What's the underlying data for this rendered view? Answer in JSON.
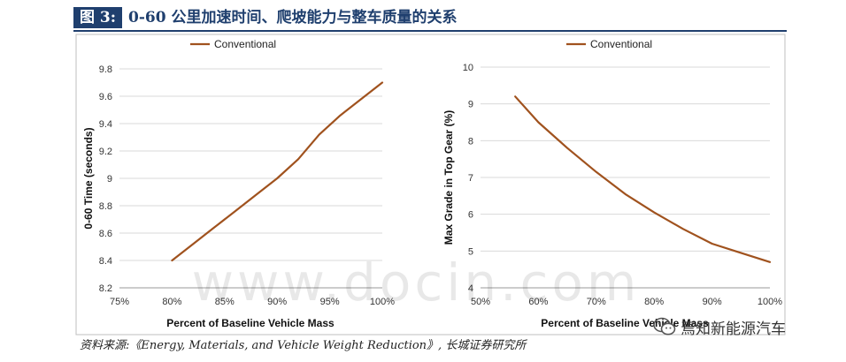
{
  "header": {
    "figure_label": "图 3:",
    "title": "0-60 公里加速时间、爬坡能力与整车质量的关系"
  },
  "chart_data": [
    {
      "type": "line",
      "legend": "Conventional",
      "legend_position": "top-left",
      "xlabel": "Percent of Baseline Vehicle Mass",
      "ylabel": "0-60 Time (seconds)",
      "xlim": [
        75,
        100
      ],
      "ylim": [
        8.2,
        9.8
      ],
      "x_ticks": [
        75,
        80,
        85,
        90,
        95,
        100
      ],
      "x_tick_labels": [
        "75%",
        "80%",
        "85%",
        "90%",
        "95%",
        "100%"
      ],
      "y_ticks": [
        8.2,
        8.4,
        8.6,
        8.8,
        9,
        9.2,
        9.4,
        9.6,
        9.8
      ],
      "y_tick_labels": [
        "8.2",
        "8.4",
        "8.6",
        "8.8",
        "9",
        "9.2",
        "9.4",
        "9.6",
        "9.8"
      ],
      "grid": true,
      "series": [
        {
          "name": "Conventional",
          "color": "#a0521e",
          "x": [
            80,
            82,
            84,
            86,
            88,
            90,
            92,
            94,
            96,
            98,
            100
          ],
          "y": [
            8.4,
            8.52,
            8.64,
            8.76,
            8.88,
            9.0,
            9.14,
            9.32,
            9.46,
            9.58,
            9.7
          ]
        }
      ]
    },
    {
      "type": "line",
      "legend": "Conventional",
      "legend_position": "top-left",
      "xlabel": "Percent of Baseline Vehicle Mass",
      "ylabel": "Max Grade in Top Gear (%)",
      "xlim": [
        50,
        100
      ],
      "ylim": [
        4,
        10
      ],
      "x_ticks": [
        50,
        60,
        70,
        80,
        90,
        100
      ],
      "x_tick_labels": [
        "50%",
        "60%",
        "70%",
        "80%",
        "90%",
        "100%"
      ],
      "y_ticks": [
        4,
        5,
        6,
        7,
        8,
        9,
        10
      ],
      "y_tick_labels": [
        "4",
        "5",
        "6",
        "7",
        "8",
        "9",
        "10"
      ],
      "grid": true,
      "series": [
        {
          "name": "Conventional",
          "color": "#a0521e",
          "x": [
            56,
            60,
            65,
            70,
            75,
            80,
            85,
            90,
            95,
            100
          ],
          "y": [
            9.2,
            8.5,
            7.8,
            7.15,
            6.55,
            6.05,
            5.6,
            5.2,
            4.95,
            4.7
          ]
        }
      ]
    }
  ],
  "watermark": "www.docin.com",
  "source": "资料来源:《Energy, Materials, and Vehicle Weight Reduction》, 长城证券研究所",
  "badge": {
    "icon": "wechat-icon",
    "text": "焉知新能源汽车"
  }
}
